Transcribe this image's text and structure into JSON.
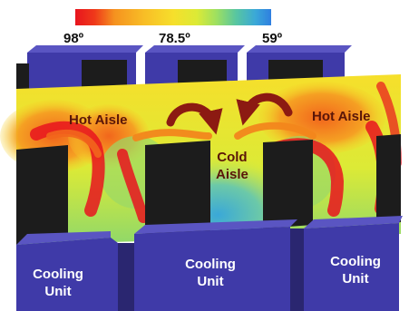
{
  "scale": {
    "max_label": "98º",
    "mid_label": "78.5º",
    "min_label": "59º",
    "colors": [
      "#e8141e",
      "#ef3a1a",
      "#f2661c",
      "#f5921f",
      "#f8bd26",
      "#f6df2b",
      "#dcea36",
      "#b8e24a",
      "#88d870",
      "#58c6a0",
      "#3aa8d8",
      "#2f7fe0"
    ]
  },
  "labels": {
    "hot_aisle_left": "Hot Aisle",
    "hot_aisle_right": "Hot Aisle",
    "cold_aisle": "Cold\nAisle"
  },
  "units": [
    {
      "label": "Cooling\nUnit"
    },
    {
      "label": "Cooling\nUnit"
    },
    {
      "label": "Cooling\nUnit"
    }
  ],
  "colors": {
    "unit_blue": "#3f3aa8",
    "rack_black": "#1c1c1c",
    "arrow": "#8c1a12",
    "hot": "#e8141e",
    "cold": "#3aa8d8"
  }
}
